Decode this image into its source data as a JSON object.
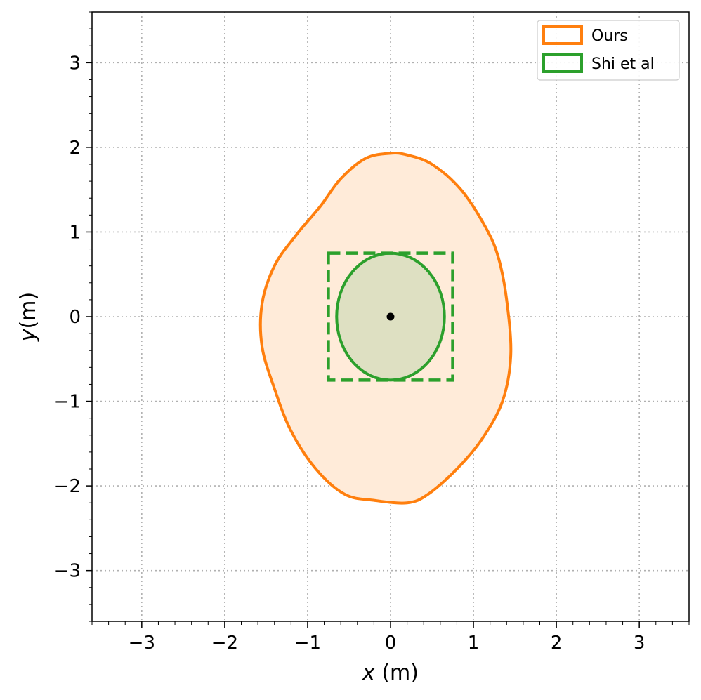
{
  "chart_data": {
    "type": "area",
    "title": "",
    "xlabel": "x (m)",
    "ylabel": "y(m)",
    "xlabel_parts": {
      "var": "x",
      "unit": " (m)"
    },
    "ylabel_parts": {
      "var": "y",
      "unit": "(m)"
    },
    "xlim": [
      -3.6,
      3.6
    ],
    "ylim": [
      -3.6,
      3.6
    ],
    "xticks": [
      -3,
      -2,
      -1,
      0,
      1,
      2,
      3
    ],
    "yticks": [
      -3,
      -2,
      -1,
      0,
      1,
      2,
      3
    ],
    "xtick_labels": [
      "−3",
      "−2",
      "−1",
      "0",
      "1",
      "2",
      "3"
    ],
    "ytick_labels": [
      "−3",
      "−2",
      "−1",
      "0",
      "1",
      "2",
      "3"
    ],
    "grid": true,
    "grid_style": "dotted",
    "legend_position": "top-right",
    "legend": [
      {
        "label": "Ours",
        "color": "#ff7f0e"
      },
      {
        "label": "Shi et al",
        "color": "#2ca02c"
      }
    ],
    "series": [
      {
        "name": "Ours",
        "kind": "closed-region",
        "color": "#ff7f0e",
        "fill": "#ffebd9",
        "points": [
          [
            0.0,
            1.93
          ],
          [
            -0.3,
            1.87
          ],
          [
            -0.6,
            1.63
          ],
          [
            -0.85,
            1.3
          ],
          [
            -1.15,
            0.95
          ],
          [
            -1.4,
            0.6
          ],
          [
            -1.55,
            0.15
          ],
          [
            -1.55,
            -0.35
          ],
          [
            -1.4,
            -0.85
          ],
          [
            -1.2,
            -1.35
          ],
          [
            -0.9,
            -1.8
          ],
          [
            -0.55,
            -2.1
          ],
          [
            -0.2,
            -2.17
          ],
          [
            0.2,
            -2.2
          ],
          [
            0.45,
            -2.1
          ],
          [
            0.8,
            -1.8
          ],
          [
            1.1,
            -1.45
          ],
          [
            1.35,
            -1.0
          ],
          [
            1.45,
            -0.45
          ],
          [
            1.4,
            0.2
          ],
          [
            1.3,
            0.7
          ],
          [
            1.15,
            1.05
          ],
          [
            0.85,
            1.5
          ],
          [
            0.5,
            1.8
          ],
          [
            0.2,
            1.91
          ]
        ]
      },
      {
        "name": "Shi et al",
        "kind": "ellipse",
        "color": "#2ca02c",
        "fill": "#dee0c2",
        "center": [
          0,
          0
        ],
        "rx": 0.65,
        "ry": 0.75
      },
      {
        "name": "Shi et al bounding box",
        "kind": "dashed-rectangle",
        "color": "#2ca02c",
        "x": [
          -0.75,
          0.75
        ],
        "y": [
          -0.75,
          0.75
        ]
      }
    ],
    "points": [
      {
        "x": 0,
        "y": 0,
        "color": "#000000"
      }
    ]
  }
}
